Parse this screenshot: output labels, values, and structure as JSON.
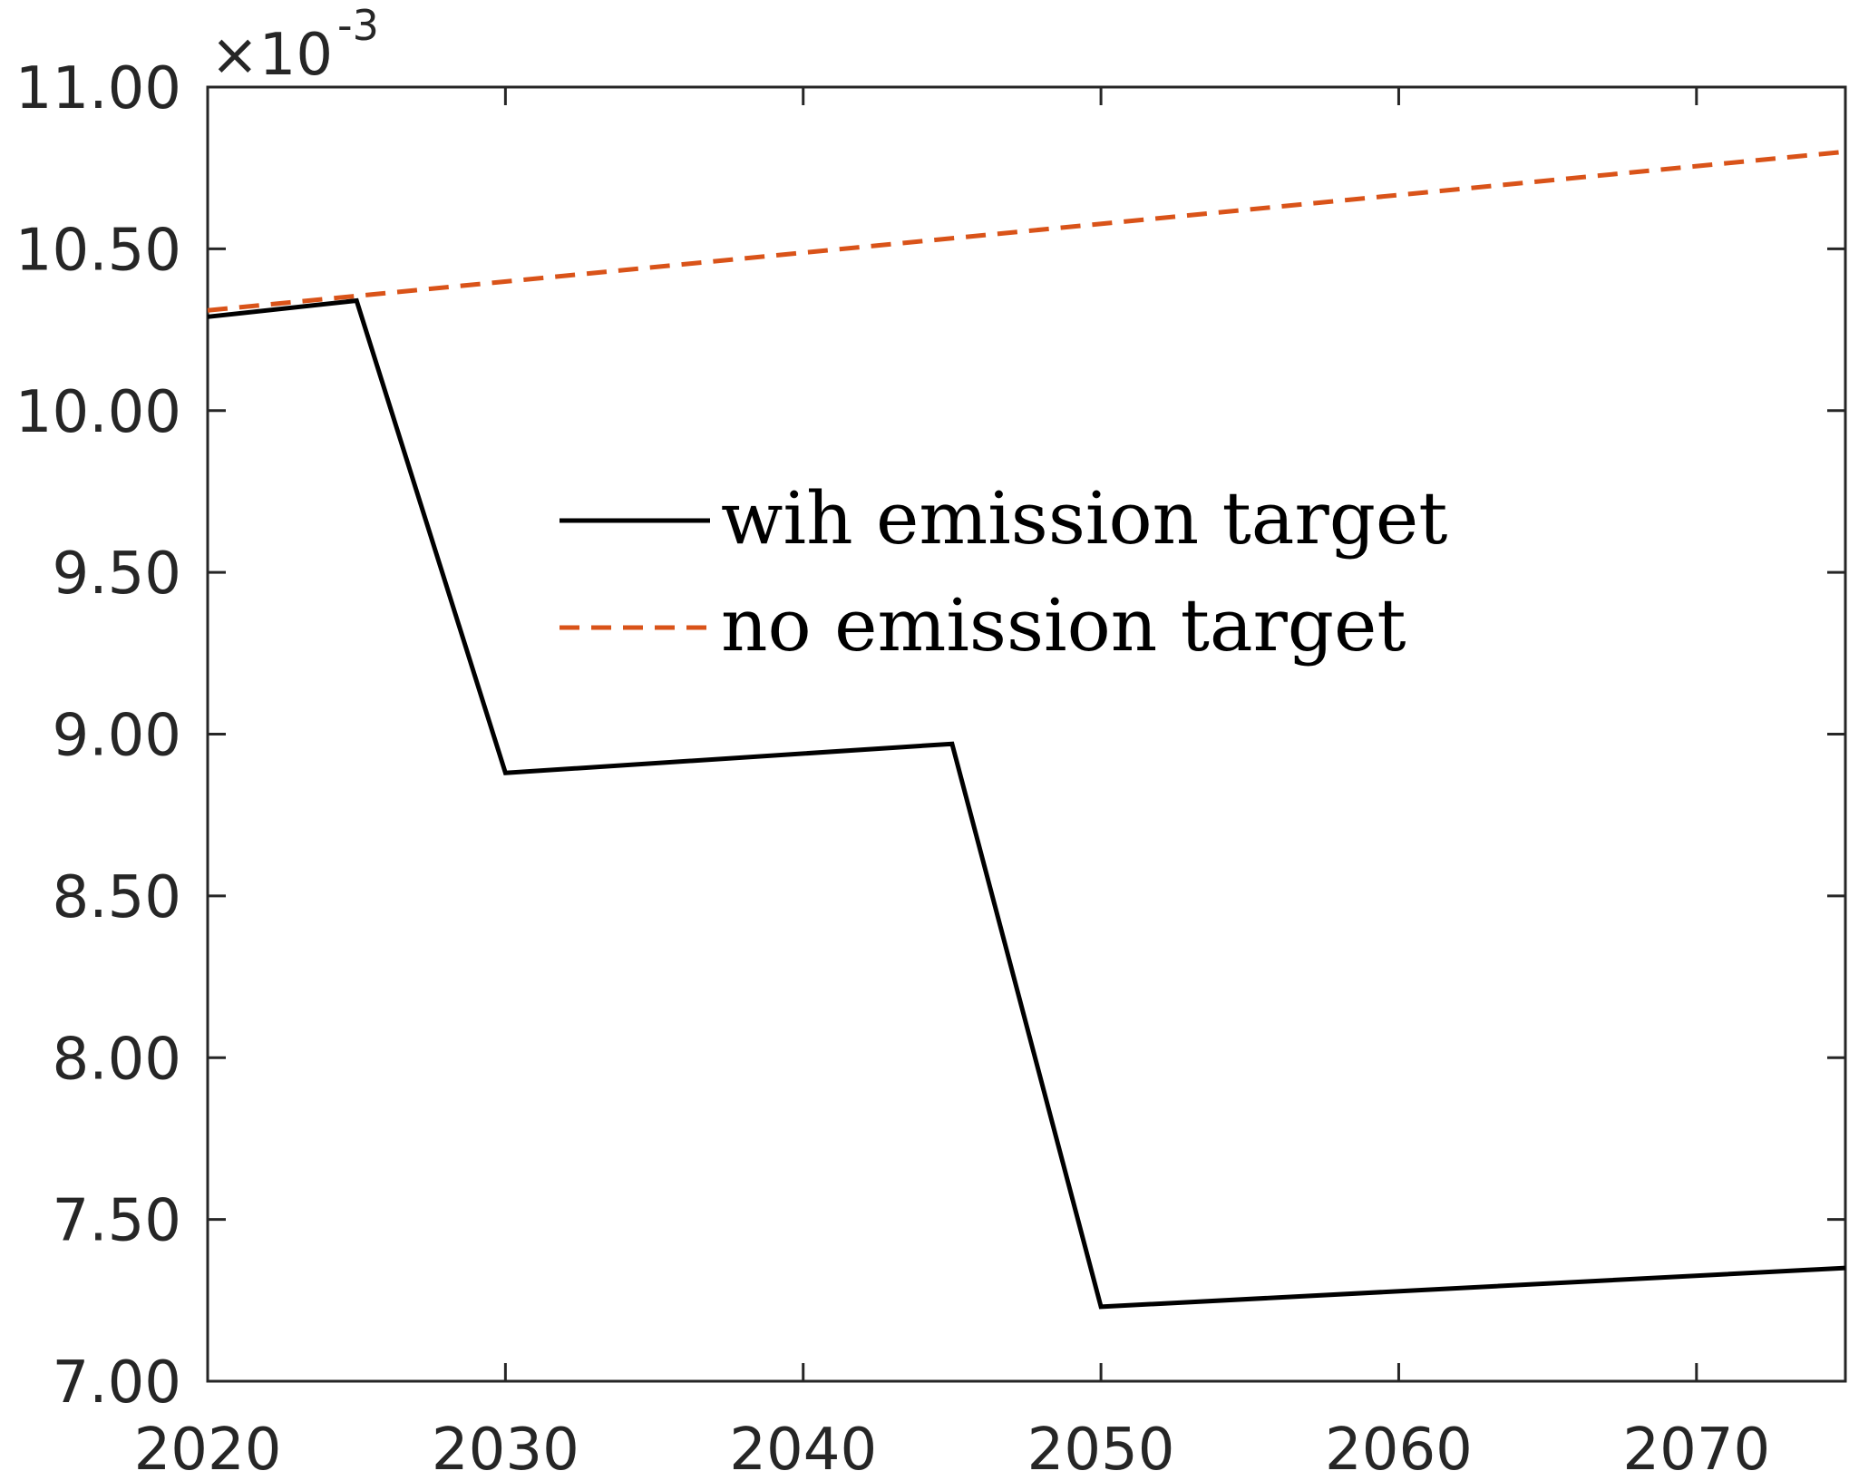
{
  "chart_data": {
    "type": "line",
    "title": "",
    "xlabel": "",
    "ylabel": "",
    "xlim": [
      2020,
      2075
    ],
    "ylim": [
      7.0,
      11.0
    ],
    "y_multiplier_label": "×10",
    "y_multiplier_exponent": "-3",
    "x_ticks": [
      {
        "value": 2020,
        "label": "2020"
      },
      {
        "value": 2030,
        "label": "2030"
      },
      {
        "value": 2040,
        "label": "2040"
      },
      {
        "value": 2050,
        "label": "2050"
      },
      {
        "value": 2060,
        "label": "2060"
      },
      {
        "value": 2070,
        "label": "2070"
      }
    ],
    "y_ticks": [
      {
        "value": 7.0,
        "label": "7.00"
      },
      {
        "value": 7.5,
        "label": "7.50"
      },
      {
        "value": 8.0,
        "label": "8.00"
      },
      {
        "value": 8.5,
        "label": "8.50"
      },
      {
        "value": 9.0,
        "label": "9.00"
      },
      {
        "value": 9.5,
        "label": "9.50"
      },
      {
        "value": 10.0,
        "label": "10.00"
      },
      {
        "value": 10.5,
        "label": "10.50"
      },
      {
        "value": 11.0,
        "label": "11.00"
      }
    ],
    "grid": false,
    "legend_position": "center",
    "series": [
      {
        "name": "wih emission target",
        "color": "#000000",
        "dash": "solid",
        "x": [
          2020,
          2025,
          2030,
          2045,
          2050,
          2075
        ],
        "y": [
          10.29,
          10.34,
          8.88,
          8.97,
          7.23,
          7.35
        ]
      },
      {
        "name": "no emission target",
        "color": "#D95319",
        "dash": "dashed",
        "x": [
          2020,
          2075
        ],
        "y": [
          10.31,
          10.8
        ]
      }
    ]
  }
}
